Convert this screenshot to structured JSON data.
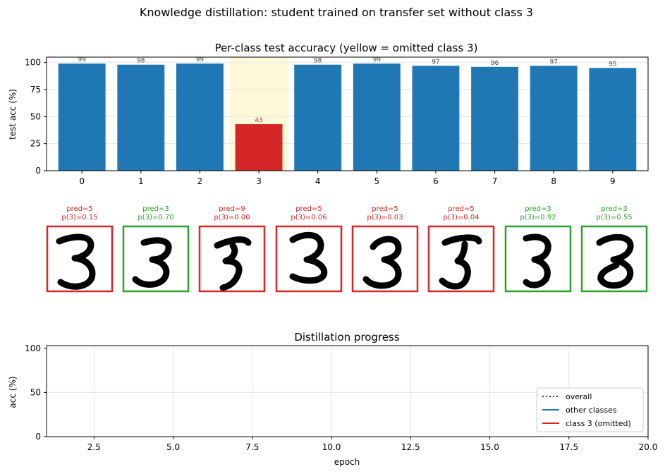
{
  "suptitle": "Knowledge distillation: student trained on transfer set without class 3",
  "colors": {
    "bar_default": "#1f77b4",
    "bar_omitted": "#d62728",
    "highlight": "#fff8d9",
    "correct": "#2ca02c",
    "wrong": "#d62728",
    "overall_line": "#333333",
    "grid": "#e6e6e6"
  },
  "chart_data": [
    {
      "type": "bar",
      "title": "Per-class test accuracy (yellow = omitted class 3)",
      "xlabel": "",
      "ylabel": "test acc (%)",
      "categories": [
        "0",
        "1",
        "2",
        "3",
        "4",
        "5",
        "6",
        "7",
        "8",
        "9"
      ],
      "values": [
        99,
        98,
        99,
        43,
        98,
        99,
        97,
        96,
        97,
        95
      ],
      "data_labels": [
        "99",
        "98",
        "99",
        "43",
        "98",
        "99",
        "97",
        "96",
        "97",
        "95"
      ],
      "highlight_index": 3,
      "ylim": [
        0,
        105
      ],
      "yticks": [
        0,
        25,
        50,
        75,
        100
      ],
      "grid": true
    },
    {
      "type": "line",
      "title": "Distillation progress",
      "xlabel": "epoch",
      "ylabel": "acc (%)",
      "xlim": [
        1,
        20
      ],
      "ylim": [
        0,
        103
      ],
      "xticks": [
        2.5,
        5.0,
        7.5,
        10.0,
        12.5,
        15.0,
        17.5,
        20.0
      ],
      "xtick_labels": [
        "2.5",
        "5.0",
        "7.5",
        "10.0",
        "12.5",
        "15.0",
        "17.5",
        "20.0"
      ],
      "yticks": [
        0,
        50,
        100
      ],
      "grid": true,
      "legend_position": "bottom-right",
      "series": [
        {
          "name": "overall",
          "style": "dotted",
          "color": "#333333",
          "values": []
        },
        {
          "name": "other classes",
          "style": "solid",
          "color": "#1f77b4",
          "values": []
        },
        {
          "name": "class 3 (omitted)",
          "style": "solid",
          "color": "#d62728",
          "values": []
        }
      ]
    }
  ],
  "samples": [
    {
      "label1": "pred=5",
      "label2": "p(3)=0.15",
      "correct": false,
      "variant": 0
    },
    {
      "label1": "pred=3",
      "label2": "p(3)=0.70",
      "correct": true,
      "variant": 1
    },
    {
      "label1": "pred=9",
      "label2": "p(3)=0.00",
      "correct": false,
      "variant": 2
    },
    {
      "label1": "pred=5",
      "label2": "p(3)=0.06",
      "correct": false,
      "variant": 3
    },
    {
      "label1": "pred=5",
      "label2": "p(3)=0.03",
      "correct": false,
      "variant": 4
    },
    {
      "label1": "pred=5",
      "label2": "p(3)=0.04",
      "correct": false,
      "variant": 5
    },
    {
      "label1": "pred=3",
      "label2": "p(3)=0.92",
      "correct": true,
      "variant": 6
    },
    {
      "label1": "pred=3",
      "label2": "p(3)=0.55",
      "correct": true,
      "variant": 7
    }
  ]
}
